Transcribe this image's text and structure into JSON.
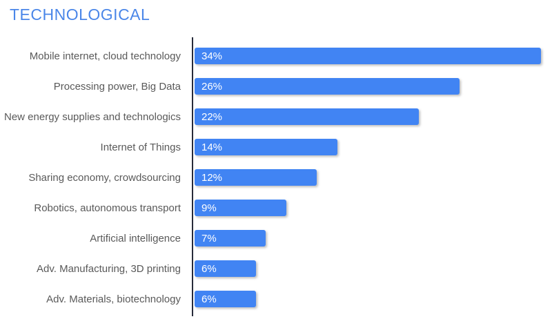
{
  "title": "TECHNOLOGICAL",
  "colors": {
    "title": "#4a86e8",
    "bar": "#4184f3",
    "axis": "#272b3a",
    "category_label": "#595959",
    "value_label": "#ffffff",
    "background": "#ffffff"
  },
  "chart_data": {
    "type": "bar",
    "orientation": "horizontal",
    "title": "TECHNOLOGICAL",
    "categories": [
      "Mobile internet, cloud technology",
      "Processing power, Big Data",
      "New energy supplies and technologics",
      "Internet of Things",
      "Sharing economy, crowdsourcing",
      "Robotics, autonomous transport",
      "Artificial intelligence",
      "Adv. Manufacturing, 3D printing",
      "Adv. Materials, biotechnology"
    ],
    "values": [
      34,
      26,
      22,
      14,
      12,
      9,
      7,
      6,
      6
    ],
    "value_suffix": "%",
    "value_labels": [
      "34%",
      "26%",
      "22%",
      "14%",
      "12%",
      "9%",
      "7%",
      "6%",
      "6%"
    ],
    "xlabel": "",
    "ylabel": "",
    "xlim": [
      0,
      35
    ],
    "grid": false,
    "legend": false,
    "value_labels_position": "inside-start"
  }
}
